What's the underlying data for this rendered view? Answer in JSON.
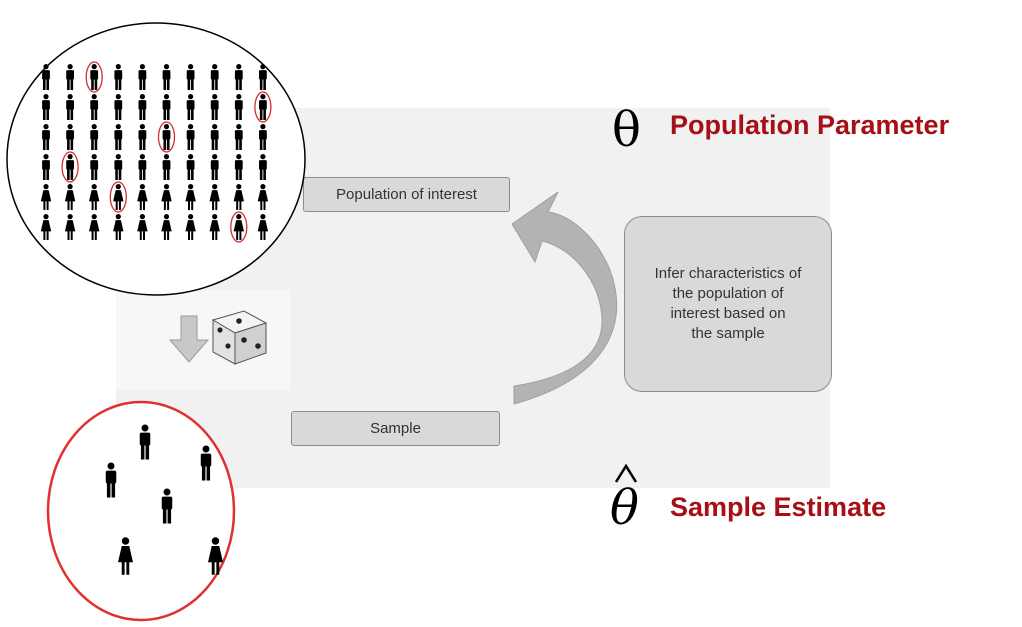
{
  "population_box": {
    "label": "Population of interest"
  },
  "sample_box": {
    "label": "Sample"
  },
  "infer_box": {
    "label": "Infer characteristics of\nthe population of\ninterest based on\nthe sample"
  },
  "population_parameter": {
    "symbol": "θ",
    "label": "Population Parameter"
  },
  "sample_estimate": {
    "symbol": "θ",
    "label": "Sample Estimate"
  },
  "colors": {
    "accent_red": "#a50f15",
    "circle_red": "#e03030",
    "box_gray": "#d9d9d9",
    "arrow_gray": "#b0b0b0"
  },
  "icons": [
    "person-icon",
    "dice-icon",
    "down-arrow-icon",
    "curved-arrow-icon"
  ]
}
